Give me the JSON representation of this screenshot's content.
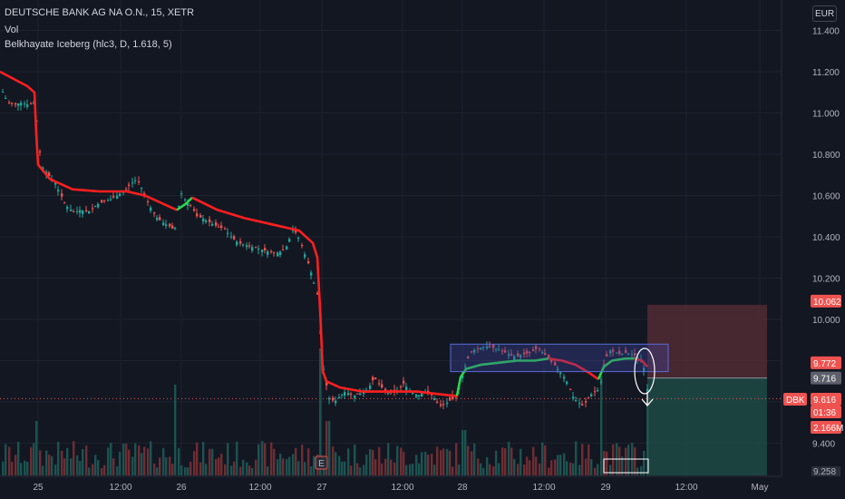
{
  "header": {
    "symbol_line": "DEUTSCHE BANK AG NA O.N., 15, XETR",
    "volume_label": "Vol",
    "indicator_label": "Belkhayate Iceberg (hlc3, D, 1.618, 5)"
  },
  "price_axis": {
    "currency": "EUR",
    "ticks": [
      "11.400",
      "11.200",
      "11.000",
      "10.800",
      "10.600",
      "10.400",
      "10.200",
      "10.000",
      "9.400",
      "9.258"
    ]
  },
  "time_axis": {
    "ticks": [
      "25",
      "12:00",
      "26",
      "12:00",
      "27",
      "12:00",
      "28",
      "12:00",
      "29",
      "12:00",
      "May"
    ]
  },
  "price_tags": {
    "target": "10.062",
    "stop": "9.772",
    "entry": "9.716",
    "symbol": "DBK",
    "last_price": "9.616",
    "countdown": "01:36",
    "volume": "2.166M"
  },
  "markers": {
    "earnings": "E"
  },
  "colors": {
    "background": "#131722",
    "up": "#26a69a",
    "down": "#ef5350",
    "iceberg_down": "#ff1f1f",
    "iceberg_up": "#2bd94a",
    "box_border": "#5b6bd6",
    "target_zone": "#5a2d35",
    "stop_zone": "#1f4a45"
  },
  "chart_data": {
    "type": "candlestick",
    "title": "DEUTSCHE BANK AG NA O.N., 15, XETR",
    "ylabel": "EUR",
    "ylim": [
      9.258,
      11.45
    ],
    "close_path": [
      [
        0,
        11.12
      ],
      [
        8,
        11.05
      ],
      [
        15,
        11.04
      ],
      [
        22,
        11.05
      ],
      [
        30,
        11.04
      ],
      [
        36,
        11.05
      ],
      [
        40,
        10.95
      ],
      [
        44,
        10.75
      ],
      [
        52,
        10.7
      ],
      [
        60,
        10.66
      ],
      [
        66,
        10.6
      ],
      [
        72,
        10.55
      ],
      [
        80,
        10.52
      ],
      [
        88,
        10.53
      ],
      [
        96,
        10.52
      ],
      [
        104,
        10.55
      ],
      [
        112,
        10.57
      ],
      [
        120,
        10.58
      ],
      [
        128,
        10.6
      ],
      [
        136,
        10.62
      ],
      [
        144,
        10.66
      ],
      [
        150,
        10.68
      ],
      [
        156,
        10.63
      ],
      [
        162,
        10.57
      ],
      [
        170,
        10.5
      ],
      [
        178,
        10.47
      ],
      [
        186,
        10.45
      ],
      [
        192,
        10.43
      ],
      [
        198,
        10.62
      ],
      [
        204,
        10.57
      ],
      [
        210,
        10.55
      ],
      [
        216,
        10.5
      ],
      [
        222,
        10.49
      ],
      [
        230,
        10.47
      ],
      [
        238,
        10.45
      ],
      [
        246,
        10.44
      ],
      [
        254,
        10.4
      ],
      [
        262,
        10.37
      ],
      [
        270,
        10.36
      ],
      [
        278,
        10.35
      ],
      [
        286,
        10.34
      ],
      [
        294,
        10.33
      ],
      [
        302,
        10.32
      ],
      [
        310,
        10.33
      ],
      [
        316,
        10.36
      ],
      [
        322,
        10.44
      ],
      [
        328,
        10.4
      ],
      [
        334,
        10.33
      ],
      [
        338,
        10.28
      ],
      [
        344,
        10.2
      ],
      [
        350,
        10.1
      ],
      [
        354,
        9.8
      ],
      [
        358,
        9.7
      ],
      [
        362,
        9.62
      ],
      [
        368,
        9.6
      ],
      [
        374,
        9.63
      ],
      [
        380,
        9.65
      ],
      [
        388,
        9.63
      ],
      [
        396,
        9.64
      ],
      [
        404,
        9.66
      ],
      [
        412,
        9.72
      ],
      [
        420,
        9.67
      ],
      [
        428,
        9.64
      ],
      [
        436,
        9.65
      ],
      [
        444,
        9.69
      ],
      [
        452,
        9.65
      ],
      [
        460,
        9.63
      ],
      [
        468,
        9.65
      ],
      [
        476,
        9.63
      ],
      [
        484,
        9.58
      ],
      [
        490,
        9.59
      ],
      [
        496,
        9.61
      ],
      [
        502,
        9.62
      ],
      [
        508,
        9.72
      ],
      [
        514,
        9.8
      ],
      [
        520,
        9.85
      ],
      [
        528,
        9.86
      ],
      [
        536,
        9.87
      ],
      [
        544,
        9.86
      ],
      [
        552,
        9.85
      ],
      [
        560,
        9.83
      ],
      [
        568,
        9.82
      ],
      [
        576,
        9.83
      ],
      [
        584,
        9.84
      ],
      [
        592,
        9.86
      ],
      [
        600,
        9.83
      ],
      [
        606,
        9.8
      ],
      [
        612,
        9.77
      ],
      [
        618,
        9.74
      ],
      [
        624,
        9.7
      ],
      [
        630,
        9.63
      ],
      [
        636,
        9.6
      ],
      [
        642,
        9.58
      ],
      [
        648,
        9.62
      ],
      [
        654,
        9.65
      ],
      [
        660,
        9.66
      ],
      [
        666,
        9.8
      ],
      [
        672,
        9.85
      ],
      [
        678,
        9.84
      ],
      [
        684,
        9.83
      ],
      [
        690,
        9.84
      ],
      [
        696,
        9.83
      ],
      [
        702,
        9.82
      ],
      [
        708,
        9.8
      ],
      [
        714,
        9.62
      ]
    ],
    "iceberg_line": [
      {
        "color": "down",
        "points": [
          [
            0,
            11.2
          ],
          [
            30,
            11.13
          ],
          [
            38,
            11.1
          ],
          [
            40,
            10.9
          ],
          [
            42,
            10.75
          ],
          [
            55,
            10.68
          ],
          [
            80,
            10.63
          ],
          [
            110,
            10.62
          ],
          [
            140,
            10.62
          ],
          [
            160,
            10.6
          ],
          [
            185,
            10.55
          ],
          [
            195,
            10.53
          ]
        ]
      },
      {
        "color": "up",
        "points": [
          [
            195,
            10.53
          ],
          [
            205,
            10.56
          ],
          [
            212,
            10.59
          ]
        ]
      },
      {
        "color": "down",
        "points": [
          [
            212,
            10.59
          ],
          [
            240,
            10.53
          ],
          [
            270,
            10.49
          ],
          [
            300,
            10.46
          ],
          [
            320,
            10.44
          ],
          [
            330,
            10.43
          ],
          [
            345,
            10.37
          ],
          [
            350,
            10.3
          ],
          [
            353,
            10.05
          ],
          [
            356,
            9.75
          ],
          [
            360,
            9.7
          ],
          [
            375,
            9.67
          ],
          [
            400,
            9.65
          ],
          [
            420,
            9.65
          ],
          [
            440,
            9.65
          ],
          [
            460,
            9.65
          ],
          [
            480,
            9.64
          ],
          [
            500,
            9.63
          ],
          [
            504,
            9.63
          ]
        ]
      },
      {
        "color": "up",
        "points": [
          [
            504,
            9.63
          ],
          [
            508,
            9.72
          ],
          [
            514,
            9.76
          ],
          [
            530,
            9.78
          ],
          [
            550,
            9.79
          ],
          [
            570,
            9.8
          ],
          [
            590,
            9.8
          ],
          [
            605,
            9.81
          ]
        ]
      },
      {
        "color": "down",
        "points": [
          [
            605,
            9.81
          ],
          [
            620,
            9.8
          ],
          [
            635,
            9.78
          ],
          [
            650,
            9.74
          ],
          [
            660,
            9.71
          ]
        ]
      },
      {
        "color": "up",
        "points": [
          [
            660,
            9.71
          ],
          [
            666,
            9.77
          ],
          [
            675,
            9.8
          ],
          [
            690,
            9.81
          ],
          [
            700,
            9.81
          ]
        ]
      },
      {
        "color": "down",
        "points": [
          [
            700,
            9.81
          ],
          [
            708,
            9.8
          ],
          [
            714,
            9.77
          ]
        ]
      }
    ],
    "volume_spikes": [
      [
        40,
        0.3
      ],
      [
        193,
        0.5
      ],
      [
        353,
        0.7
      ],
      [
        360,
        0.3
      ],
      [
        510,
        0.25
      ],
      [
        662,
        0.55
      ],
      [
        714,
        0.4
      ]
    ],
    "position": {
      "entry": 9.716,
      "target": 10.062,
      "stop": 9.772,
      "last": 9.616
    },
    "consolidation_box": {
      "from_day": "28",
      "top": 9.88,
      "bottom": 9.76
    }
  }
}
